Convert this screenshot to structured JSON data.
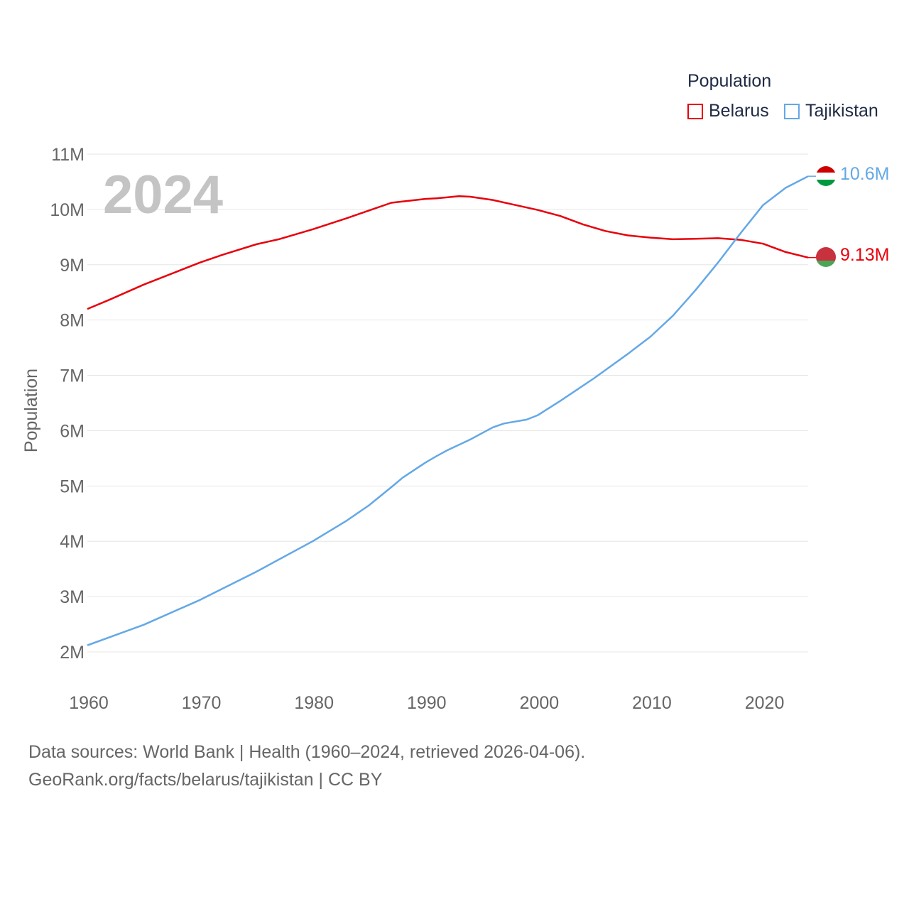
{
  "chart_data": {
    "type": "line",
    "title": "Population",
    "ylabel": "Population",
    "xlabel": "",
    "year_watermark": "2024",
    "xlim": [
      1960,
      2024
    ],
    "ylim": [
      2000000,
      11000000
    ],
    "x_ticks": [
      1960,
      1970,
      1980,
      1990,
      2000,
      2010,
      2020
    ],
    "x_tick_labels": [
      "1960",
      "1970",
      "1980",
      "1990",
      "2000",
      "2010",
      "2020"
    ],
    "y_ticks": [
      2000000,
      3000000,
      4000000,
      5000000,
      6000000,
      7000000,
      8000000,
      9000000,
      10000000,
      11000000
    ],
    "y_tick_labels": [
      "2M",
      "3M",
      "4M",
      "5M",
      "6M",
      "7M",
      "8M",
      "9M",
      "10M",
      "11M"
    ],
    "grid": true,
    "legend_title": "Population",
    "legend_position": "top-right",
    "series": [
      {
        "name": "Belarus",
        "color": "#e8000b",
        "end_label": "9.13M",
        "points": [
          [
            1960,
            8200000
          ],
          [
            1962,
            8370000
          ],
          [
            1965,
            8640000
          ],
          [
            1970,
            9040000
          ],
          [
            1972,
            9180000
          ],
          [
            1975,
            9370000
          ],
          [
            1977,
            9460000
          ],
          [
            1980,
            9640000
          ],
          [
            1983,
            9840000
          ],
          [
            1985,
            9980000
          ],
          [
            1987,
            10120000
          ],
          [
            1990,
            10190000
          ],
          [
            1991,
            10200000
          ],
          [
            1993,
            10240000
          ],
          [
            1994,
            10230000
          ],
          [
            1996,
            10170000
          ],
          [
            1998,
            10080000
          ],
          [
            2000,
            9990000
          ],
          [
            2002,
            9880000
          ],
          [
            2004,
            9730000
          ],
          [
            2006,
            9610000
          ],
          [
            2008,
            9530000
          ],
          [
            2010,
            9490000
          ],
          [
            2012,
            9460000
          ],
          [
            2014,
            9470000
          ],
          [
            2016,
            9480000
          ],
          [
            2018,
            9450000
          ],
          [
            2020,
            9380000
          ],
          [
            2022,
            9230000
          ],
          [
            2024,
            9130000
          ]
        ]
      },
      {
        "name": "Tajikistan",
        "color": "#64a8e6",
        "end_label": "10.6M",
        "points": [
          [
            1960,
            2120000
          ],
          [
            1965,
            2490000
          ],
          [
            1970,
            2940000
          ],
          [
            1975,
            3450000
          ],
          [
            1980,
            4000000
          ],
          [
            1983,
            4370000
          ],
          [
            1985,
            4650000
          ],
          [
            1987,
            4980000
          ],
          [
            1988,
            5150000
          ],
          [
            1990,
            5420000
          ],
          [
            1991,
            5540000
          ],
          [
            1992,
            5650000
          ],
          [
            1994,
            5840000
          ],
          [
            1996,
            6060000
          ],
          [
            1997,
            6130000
          ],
          [
            1999,
            6200000
          ],
          [
            2000,
            6280000
          ],
          [
            2002,
            6540000
          ],
          [
            2005,
            6950000
          ],
          [
            2008,
            7390000
          ],
          [
            2010,
            7700000
          ],
          [
            2012,
            8080000
          ],
          [
            2014,
            8540000
          ],
          [
            2016,
            9040000
          ],
          [
            2018,
            9570000
          ],
          [
            2020,
            10080000
          ],
          [
            2022,
            10390000
          ],
          [
            2024,
            10600000
          ]
        ]
      }
    ]
  },
  "legend": {
    "title": "Population",
    "items": [
      {
        "label": "Belarus",
        "color": "#e8000b"
      },
      {
        "label": "Tajikistan",
        "color": "#64a8e6"
      }
    ]
  },
  "end_labels": {
    "tajikistan": "10.6M",
    "belarus": "9.13M"
  },
  "flags": {
    "tajikistan": [
      "#cc0000",
      "#ffffff",
      "#009a3e"
    ],
    "belarus": [
      "#c8313e",
      "#c8313e",
      "#4aa657"
    ]
  },
  "source": {
    "line1": "Data sources: World Bank | Health (1960–2024, retrieved 2026-04-06).",
    "line2": "GeoRank.org/facts/belarus/tajikistan | CC BY"
  }
}
